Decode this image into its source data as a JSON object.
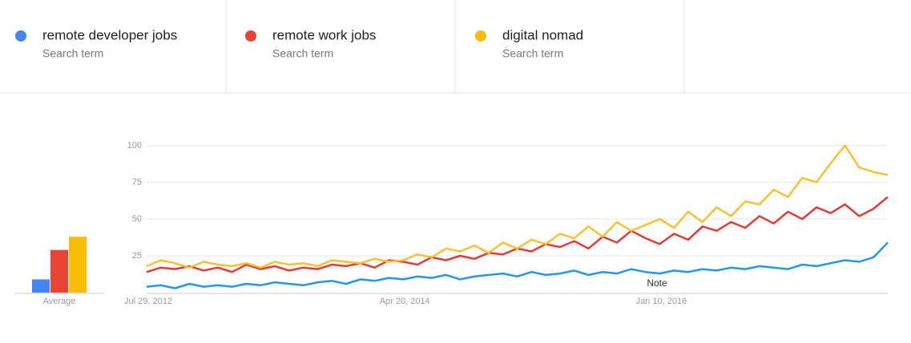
{
  "header": {
    "subtitles": [
      "Search term",
      "Search term",
      "Search term"
    ]
  },
  "chart_data": [
    {
      "type": "bar",
      "categories": [
        "Average"
      ],
      "ylim": [
        0,
        100
      ],
      "series": [
        {
          "name": "remote developer jobs",
          "color": "#4285f4",
          "values": [
            9
          ]
        },
        {
          "name": "remote work jobs",
          "color": "#ea4335",
          "values": [
            29
          ]
        },
        {
          "name": "digital nomad",
          "color": "#fbbc05",
          "values": [
            38
          ]
        }
      ]
    },
    {
      "type": "line",
      "ylim": [
        0,
        100
      ],
      "yticks": [
        25,
        50,
        75,
        100
      ],
      "grid": true,
      "annotation": "Note",
      "categories": [
        "Jul 29, 2012",
        null,
        null,
        null,
        null,
        null,
        null,
        null,
        null,
        null,
        null,
        null,
        null,
        null,
        null,
        null,
        null,
        null,
        "Apr 20, 2014",
        null,
        null,
        null,
        null,
        null,
        null,
        null,
        null,
        null,
        null,
        null,
        null,
        null,
        null,
        null,
        null,
        null,
        "Jan 10, 2016",
        null,
        null,
        null,
        null,
        null,
        null,
        null,
        null,
        null,
        null,
        null,
        null,
        null,
        null,
        null,
        null
      ],
      "series": [
        {
          "name": "remote developer jobs",
          "color": "#2196f3",
          "values": [
            4,
            5,
            3,
            6,
            4,
            5,
            4,
            6,
            5,
            7,
            6,
            5,
            7,
            8,
            6,
            9,
            8,
            10,
            9,
            11,
            10,
            12,
            9,
            11,
            12,
            13,
            11,
            14,
            12,
            13,
            15,
            12,
            14,
            13,
            16,
            14,
            13,
            15,
            14,
            16,
            15,
            17,
            16,
            18,
            17,
            16,
            19,
            18,
            20,
            22,
            21,
            24,
            34
          ]
        },
        {
          "name": "remote work jobs",
          "color": "#e53935",
          "values": [
            14,
            17,
            16,
            18,
            15,
            17,
            14,
            19,
            16,
            18,
            15,
            17,
            16,
            19,
            18,
            20,
            17,
            22,
            21,
            19,
            24,
            22,
            25,
            23,
            27,
            26,
            30,
            28,
            33,
            31,
            35,
            30,
            38,
            34,
            42,
            37,
            33,
            40,
            36,
            45,
            42,
            48,
            44,
            52,
            47,
            55,
            50,
            58,
            54,
            60,
            52,
            57,
            65
          ]
        },
        {
          "name": "digital nomad",
          "color": "#fbc02d",
          "values": [
            18,
            22,
            20,
            17,
            21,
            19,
            18,
            20,
            17,
            21,
            19,
            20,
            18,
            22,
            21,
            20,
            23,
            21,
            22,
            26,
            24,
            30,
            28,
            32,
            27,
            34,
            30,
            36,
            33,
            40,
            37,
            45,
            38,
            48,
            42,
            46,
            50,
            44,
            55,
            48,
            58,
            52,
            62,
            60,
            70,
            65,
            78,
            75,
            88,
            100,
            85,
            82,
            80
          ]
        }
      ]
    }
  ]
}
